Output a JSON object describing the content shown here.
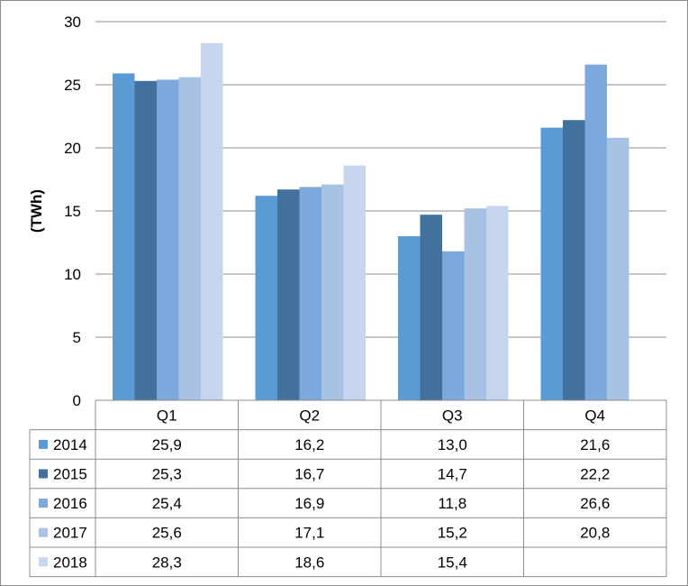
{
  "chart_data": {
    "type": "bar",
    "title": "",
    "xlabel": "",
    "ylabel": "(TWh)",
    "ylim": [
      0,
      30
    ],
    "yticks": [
      0,
      5,
      10,
      15,
      20,
      25,
      30
    ],
    "ytick_labels": [
      "0",
      "5",
      "10",
      "15",
      "20",
      "25",
      "30"
    ],
    "grid": true,
    "legend": "data-table",
    "categories": [
      "Q1",
      "Q2",
      "Q3",
      "Q4"
    ],
    "series": [
      {
        "name": "2014",
        "color": "#5b9bd5",
        "values": [
          25.9,
          16.2,
          13.0,
          21.6
        ],
        "labels": [
          "25,9",
          "16,2",
          "13,0",
          "21,6"
        ]
      },
      {
        "name": "2015",
        "color": "#41719c",
        "values": [
          25.3,
          16.7,
          14.7,
          22.2
        ],
        "labels": [
          "25,3",
          "16,7",
          "14,7",
          "22,2"
        ]
      },
      {
        "name": "2016",
        "color": "#7ba9dc",
        "values": [
          25.4,
          16.9,
          11.8,
          26.6
        ],
        "labels": [
          "25,4",
          "16,9",
          "11,8",
          "26,6"
        ]
      },
      {
        "name": "2017",
        "color": "#a8c2e3",
        "values": [
          25.6,
          17.1,
          15.2,
          20.8
        ],
        "labels": [
          "25,6",
          "17,1",
          "15,2",
          "20,8"
        ]
      },
      {
        "name": "2018",
        "color": "#c5d6ee",
        "values": [
          28.3,
          18.6,
          15.4,
          null
        ],
        "labels": [
          "28,3",
          "18,6",
          "15,4",
          ""
        ]
      }
    ]
  }
}
